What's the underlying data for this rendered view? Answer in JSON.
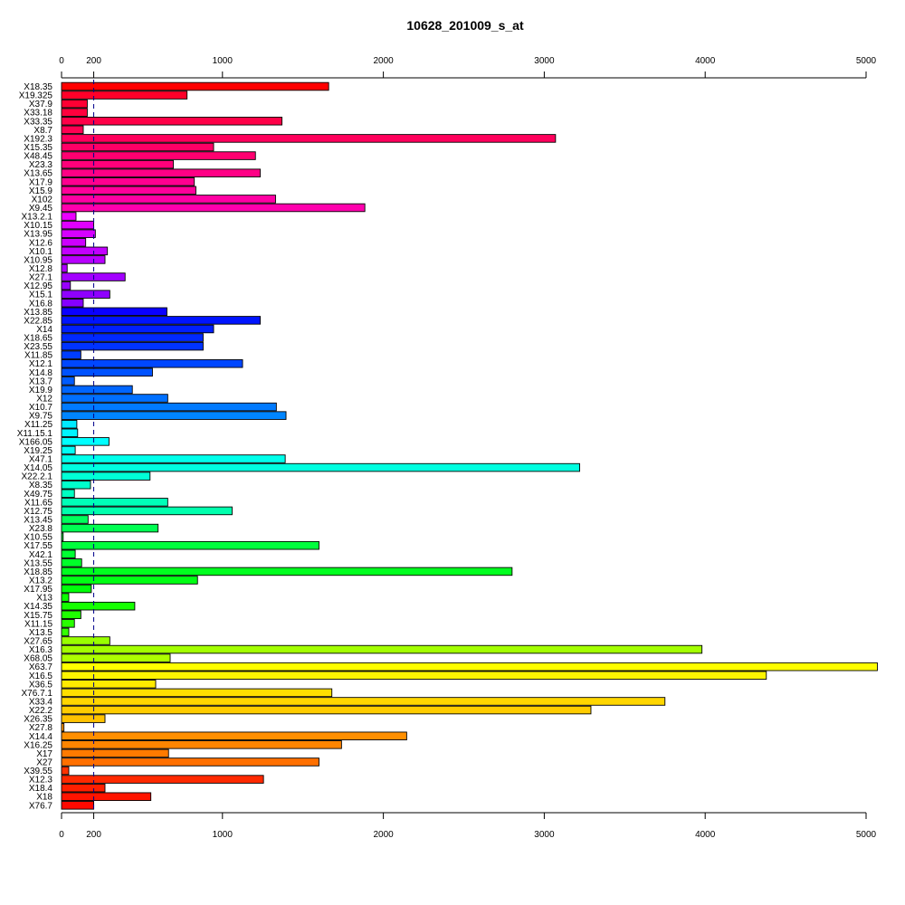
{
  "chart_data": {
    "type": "bar",
    "orientation": "horizontal",
    "title": "10628_201009_s_at",
    "xlabel": "",
    "ylabel": "",
    "xlim": [
      0,
      5000
    ],
    "x_ticks": [
      0,
      200,
      1000,
      2000,
      3000,
      4000,
      5000
    ],
    "reference_line": 200,
    "axes": [
      "top",
      "bottom"
    ],
    "grid": false,
    "legend": "none",
    "categories": [
      "X18.35",
      "X19.325",
      "X37.9",
      "X33.18",
      "X33.35",
      "X8.7",
      "X192.3",
      "X15.35",
      "X48.45",
      "X23.3",
      "X13.65",
      "X17.9",
      "X15.9",
      "X102",
      "X9.45",
      "X13.2.1",
      "X10.15",
      "X13.95",
      "X12.6",
      "X10.1",
      "X10.95",
      "X12.8",
      "X27.1",
      "X12.95",
      "X15.1",
      "X16.8",
      "X13.85",
      "X22.85",
      "X14",
      "X18.65",
      "X23.55",
      "X11.85",
      "X12.1",
      "X14.8",
      "X13.7",
      "X19.9",
      "X12",
      "X10.7",
      "X9.75",
      "X11.25",
      "X11.15.1",
      "X166.05",
      "X19.25",
      "X47.1",
      "X14.05",
      "X22.2.1",
      "X8.35",
      "X49.75",
      "X11.65",
      "X12.75",
      "X13.45",
      "X23.8",
      "X10.55",
      "X17.55",
      "X42.1",
      "X13.55",
      "X18.85",
      "X13.2",
      "X17.95",
      "X13",
      "X14.35",
      "X15.75",
      "X11.15",
      "X13.5",
      "X27.65",
      "X16.3",
      "X68.05",
      "X63.7",
      "X16.5",
      "X36.5",
      "X76.7.1",
      "X33.4",
      "X22.2",
      "X26.35",
      "X27.8",
      "X14.4",
      "X16.25",
      "X17",
      "X27",
      "X39.55",
      "X12.3",
      "X18.4",
      "X18",
      "X76.7"
    ],
    "values": [
      1660,
      780,
      160,
      160,
      1370,
      135,
      3070,
      945,
      1205,
      695,
      1235,
      825,
      835,
      1330,
      1885,
      90,
      200,
      210,
      150,
      285,
      270,
      35,
      395,
      55,
      300,
      135,
      655,
      1235,
      945,
      880,
      880,
      120,
      1125,
      565,
      80,
      440,
      660,
      1335,
      1395,
      95,
      100,
      295,
      85,
      1390,
      3220,
      550,
      180,
      80,
      660,
      1060,
      165,
      600,
      10,
      1600,
      85,
      125,
      2800,
      845,
      185,
      45,
      455,
      120,
      80,
      45,
      300,
      3980,
      675,
      5070,
      4380,
      585,
      1680,
      3750,
      3290,
      270,
      15,
      2145,
      1740,
      665,
      1600,
      45,
      1255,
      270,
      555,
      200
    ],
    "bar_colors": [
      "#FF0000",
      "#FF0029",
      "#FF0033",
      "#FF003D",
      "#FF0048",
      "#FF0052",
      "#FF005C",
      "#FF0066",
      "#FF0070",
      "#FF007A",
      "#FF0085",
      "#FF008F",
      "#FF0099",
      "#FF00A3",
      "#FF00AD",
      "#EB00FF",
      "#E000FF",
      "#D600FF",
      "#CC00FF",
      "#C200FF",
      "#B800FF",
      "#AD00FF",
      "#A300FF",
      "#9900FF",
      "#8F00FF",
      "#8500FF",
      "#0A00FF",
      "#0014FF",
      "#001FFF",
      "#0029FF",
      "#0033FF",
      "#003DFF",
      "#0047FF",
      "#0052FF",
      "#005CFF",
      "#0066FF",
      "#0070FF",
      "#007AFF",
      "#0085FF",
      "#00EBFF",
      "#00F5FF",
      "#00FFFF",
      "#00FFF5",
      "#00FFEB",
      "#00FFE0",
      "#00FFD6",
      "#00FFCC",
      "#00FFC2",
      "#00FFB8",
      "#00FFAD",
      "#00FF5C",
      "#00FF52",
      "#00FF47",
      "#00FF3D",
      "#00FF33",
      "#00FF29",
      "#00FF1F",
      "#00FF14",
      "#00FF0A",
      "#0AFF00",
      "#14FF00",
      "#1FFF00",
      "#29FF00",
      "#33FF00",
      "#99FF00",
      "#A3FF00",
      "#ADFF00",
      "#FFFF00",
      "#FFF500",
      "#FFEB00",
      "#FFE000",
      "#FFD600",
      "#FFCC00",
      "#FFC200",
      "#FF9900",
      "#FF8F00",
      "#FF8500",
      "#FF7A00",
      "#FF7000",
      "#FF3300",
      "#FF2900",
      "#FF1F00",
      "#FF1400",
      "#FF0A00"
    ]
  }
}
